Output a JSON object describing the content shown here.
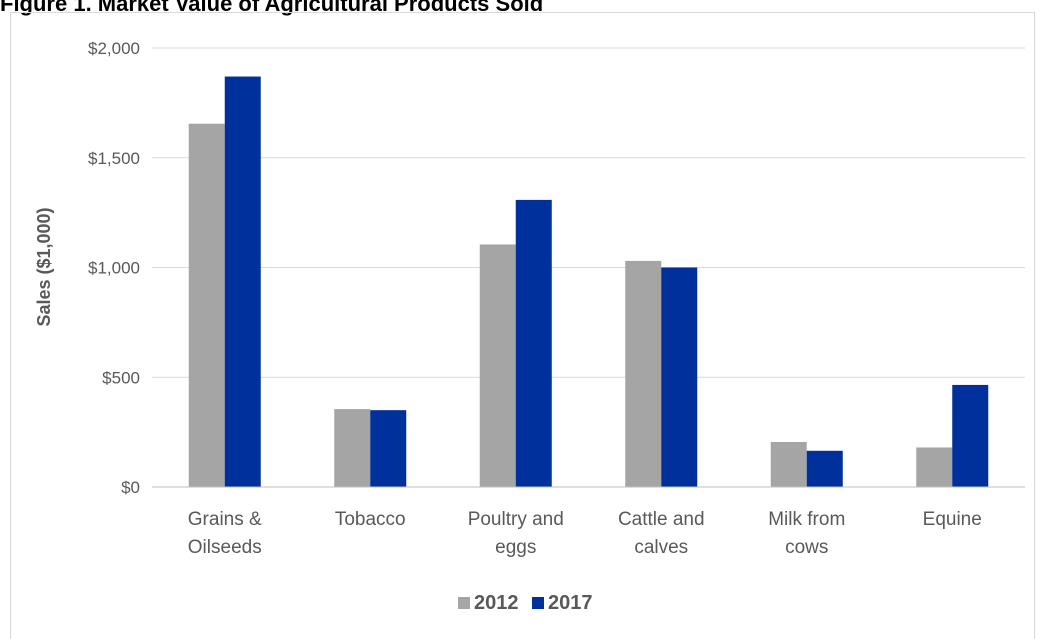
{
  "figure": {
    "title": "Figure 1. Market Value of Agricultural Products Sold"
  },
  "chart_data": {
    "type": "bar",
    "ylabel": "Sales ($1,000)",
    "xlabel": "",
    "ylim": [
      0,
      2000
    ],
    "yticks": [
      0,
      500,
      1000,
      1500,
      2000
    ],
    "ytick_labels": [
      "$0",
      "$500",
      "$1,000",
      "$1,500",
      "$2,000"
    ],
    "categories": [
      [
        "Grains &",
        "Oilseeds"
      ],
      [
        "Tobacco"
      ],
      [
        "Poultry and",
        "eggs"
      ],
      [
        "Cattle and",
        "calves"
      ],
      [
        "Milk from",
        "cows"
      ],
      [
        "Equine"
      ]
    ],
    "series": [
      {
        "name": "2012",
        "color": "#a5a5a5",
        "values": [
          1655,
          355,
          1105,
          1030,
          205,
          180
        ]
      },
      {
        "name": "2017",
        "color": "#00309b",
        "values": [
          1870,
          350,
          1308,
          1000,
          165,
          465
        ]
      }
    ],
    "grid": true,
    "legend_position": "bottom-center"
  }
}
